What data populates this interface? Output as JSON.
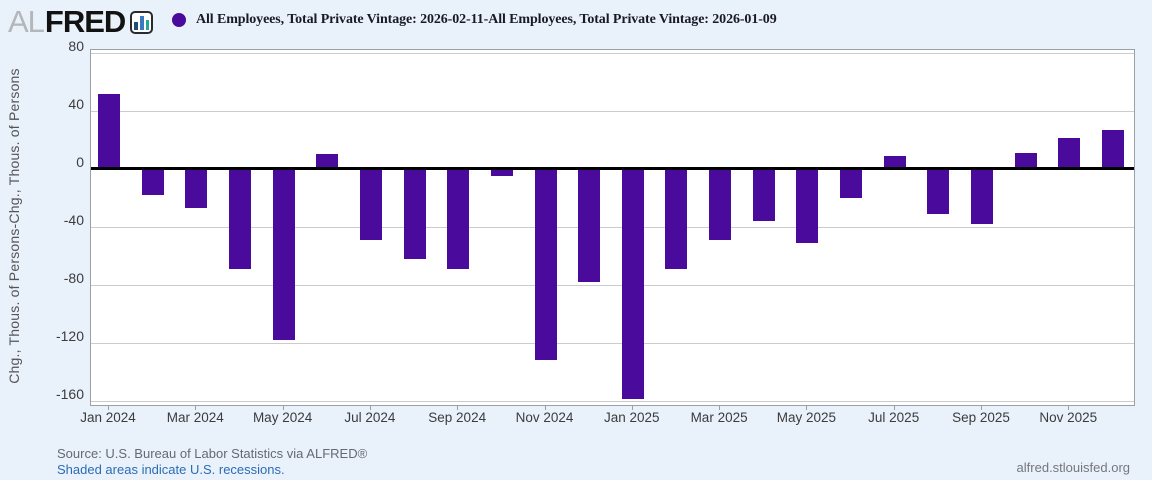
{
  "header": {
    "logo_al": "AL",
    "logo_fred": "FRED",
    "legend_label": "All Employees, Total Private Vintage: 2026-02-11-All Employees, Total Private Vintage: 2026-01-09"
  },
  "chart_data": {
    "type": "bar",
    "title": "All Employees, Total Private Vintage: 2026-02-11-All Employees, Total Private Vintage: 2026-01-09",
    "xlabel": "",
    "ylabel": "Chg., Thous. of Persons-Chg., Thous. of Persons",
    "categories": [
      "Jan 2024",
      "Feb 2024",
      "Mar 2024",
      "Apr 2024",
      "May 2024",
      "Jun 2024",
      "Jul 2024",
      "Aug 2024",
      "Sep 2024",
      "Oct 2024",
      "Nov 2024",
      "Dec 2024",
      "Jan 2025",
      "Feb 2025",
      "Mar 2025",
      "Apr 2025",
      "May 2025",
      "Jun 2025",
      "Jul 2025",
      "Aug 2025",
      "Sep 2025",
      "Oct 2025",
      "Nov 2025",
      "Dec 2025"
    ],
    "values": [
      52,
      -18,
      -27,
      -69,
      -118,
      10,
      -49,
      -62,
      -69,
      -5,
      -132,
      -78,
      -159,
      -69,
      -49,
      -36,
      -51,
      -20,
      9,
      -31,
      -38,
      11,
      21,
      27
    ],
    "yticks": [
      80,
      40,
      0,
      -40,
      -80,
      -120,
      -160
    ],
    "ylim": [
      -163,
      82
    ],
    "xtick_labels": [
      "Jan 2024",
      "Mar 2024",
      "May 2024",
      "Jul 2024",
      "Sep 2024",
      "Nov 2024",
      "Jan 2025",
      "Mar 2025",
      "May 2025",
      "Jul 2025",
      "Sep 2025",
      "Nov 2025"
    ],
    "bar_color": "#4a0a9c",
    "grid": true,
    "legend_position": "top",
    "legend_marker_color": "#4a0a9c"
  },
  "footer": {
    "source": "Source: U.S. Bureau of Labor Statistics via ALFRED®",
    "recessions_note": "Shaded areas indicate U.S. recessions.",
    "watermark": "alfred.stlouisfed.org"
  }
}
